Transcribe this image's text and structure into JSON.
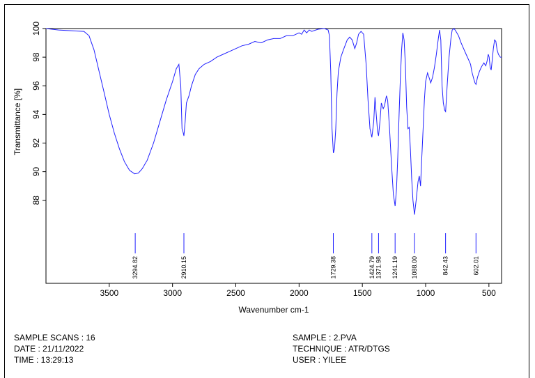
{
  "chart_data": {
    "type": "line",
    "xlabel": "Wavenumber cm-1",
    "ylabel": "Transmittance [%]",
    "xlim": [
      4000,
      400
    ],
    "ylim": [
      82.2,
      100
    ],
    "x_ticks": [
      3500,
      3000,
      2500,
      2000,
      1500,
      1000,
      500
    ],
    "y_ticks": [
      88,
      90,
      92,
      94,
      96,
      98,
      100
    ],
    "line_color": "#2020ff",
    "grid": false,
    "series": [
      {
        "points": [
          [
            4000,
            100.0
          ],
          [
            3900,
            99.9
          ],
          [
            3800,
            99.85
          ],
          [
            3700,
            99.8
          ],
          [
            3660,
            99.5
          ],
          [
            3620,
            98.5
          ],
          [
            3580,
            97.0
          ],
          [
            3540,
            95.5
          ],
          [
            3500,
            94.0
          ],
          [
            3460,
            92.7
          ],
          [
            3420,
            91.6
          ],
          [
            3380,
            90.7
          ],
          [
            3340,
            90.1
          ],
          [
            3300,
            89.85
          ],
          [
            3270,
            89.9
          ],
          [
            3240,
            90.2
          ],
          [
            3200,
            90.8
          ],
          [
            3150,
            92.0
          ],
          [
            3100,
            93.5
          ],
          [
            3050,
            95.0
          ],
          [
            3000,
            96.3
          ],
          [
            2970,
            97.2
          ],
          [
            2950,
            97.5
          ],
          [
            2935,
            96.0
          ],
          [
            2925,
            93.0
          ],
          [
            2918,
            92.8
          ],
          [
            2910,
            92.5
          ],
          [
            2900,
            93.5
          ],
          [
            2890,
            94.8
          ],
          [
            2870,
            95.3
          ],
          [
            2850,
            96.0
          ],
          [
            2820,
            96.8
          ],
          [
            2790,
            97.2
          ],
          [
            2750,
            97.5
          ],
          [
            2700,
            97.7
          ],
          [
            2650,
            98.0
          ],
          [
            2600,
            98.2
          ],
          [
            2550,
            98.4
          ],
          [
            2500,
            98.6
          ],
          [
            2450,
            98.8
          ],
          [
            2400,
            98.9
          ],
          [
            2350,
            99.1
          ],
          [
            2300,
            99.0
          ],
          [
            2250,
            99.2
          ],
          [
            2200,
            99.3
          ],
          [
            2150,
            99.3
          ],
          [
            2100,
            99.5
          ],
          [
            2050,
            99.5
          ],
          [
            2000,
            99.7
          ],
          [
            1980,
            99.6
          ],
          [
            1960,
            99.9
          ],
          [
            1940,
            99.7
          ],
          [
            1920,
            99.9
          ],
          [
            1900,
            99.8
          ],
          [
            1850,
            99.95
          ],
          [
            1800,
            100.0
          ],
          [
            1770,
            99.9
          ],
          [
            1760,
            99.5
          ],
          [
            1750,
            97.0
          ],
          [
            1740,
            93.0
          ],
          [
            1729,
            91.3
          ],
          [
            1720,
            91.6
          ],
          [
            1710,
            93.0
          ],
          [
            1700,
            95.5
          ],
          [
            1690,
            97.0
          ],
          [
            1670,
            98.0
          ],
          [
            1650,
            98.5
          ],
          [
            1620,
            99.2
          ],
          [
            1600,
            99.4
          ],
          [
            1580,
            99.2
          ],
          [
            1560,
            98.6
          ],
          [
            1545,
            99.0
          ],
          [
            1530,
            99.6
          ],
          [
            1510,
            99.8
          ],
          [
            1490,
            99.6
          ],
          [
            1470,
            97.5
          ],
          [
            1455,
            95.0
          ],
          [
            1440,
            93.0
          ],
          [
            1425,
            92.4
          ],
          [
            1410,
            93.5
          ],
          [
            1400,
            95.2
          ],
          [
            1390,
            94.0
          ],
          [
            1380,
            92.8
          ],
          [
            1372,
            92.5
          ],
          [
            1360,
            93.6
          ],
          [
            1350,
            94.8
          ],
          [
            1335,
            94.4
          ],
          [
            1325,
            94.6
          ],
          [
            1310,
            95.3
          ],
          [
            1300,
            95.0
          ],
          [
            1285,
            93.0
          ],
          [
            1270,
            90.5
          ],
          [
            1255,
            88.4
          ],
          [
            1241,
            87.6
          ],
          [
            1230,
            88.8
          ],
          [
            1220,
            91.0
          ],
          [
            1210,
            94.0
          ],
          [
            1200,
            96.5
          ],
          [
            1190,
            98.5
          ],
          [
            1180,
            99.7
          ],
          [
            1170,
            99.2
          ],
          [
            1160,
            97.5
          ],
          [
            1150,
            94.5
          ],
          [
            1140,
            93.0
          ],
          [
            1130,
            93.1
          ],
          [
            1120,
            91.5
          ],
          [
            1110,
            89.5
          ],
          [
            1100,
            88.0
          ],
          [
            1088,
            87.0
          ],
          [
            1075,
            88.0
          ],
          [
            1060,
            89.3
          ],
          [
            1050,
            89.7
          ],
          [
            1040,
            89.0
          ],
          [
            1030,
            91.0
          ],
          [
            1020,
            93.0
          ],
          [
            1010,
            95.0
          ],
          [
            1000,
            96.3
          ],
          [
            985,
            96.9
          ],
          [
            970,
            96.5
          ],
          [
            960,
            96.2
          ],
          [
            945,
            96.6
          ],
          [
            930,
            97.3
          ],
          [
            915,
            98.2
          ],
          [
            900,
            99.3
          ],
          [
            890,
            99.9
          ],
          [
            880,
            99.2
          ],
          [
            870,
            96.0
          ],
          [
            860,
            94.8
          ],
          [
            850,
            94.3
          ],
          [
            842,
            94.2
          ],
          [
            830,
            96.0
          ],
          [
            815,
            98.0
          ],
          [
            800,
            99.3
          ],
          [
            790,
            99.9
          ],
          [
            775,
            100.0
          ],
          [
            760,
            99.8
          ],
          [
            740,
            99.5
          ],
          [
            720,
            99.0
          ],
          [
            700,
            98.6
          ],
          [
            680,
            98.2
          ],
          [
            660,
            97.8
          ],
          [
            645,
            97.5
          ],
          [
            635,
            97.0
          ],
          [
            620,
            96.5
          ],
          [
            610,
            96.2
          ],
          [
            602,
            96.1
          ],
          [
            590,
            96.6
          ],
          [
            575,
            97.0
          ],
          [
            560,
            97.3
          ],
          [
            540,
            97.6
          ],
          [
            525,
            97.4
          ],
          [
            515,
            97.7
          ],
          [
            505,
            98.2
          ],
          [
            498,
            98.0
          ],
          [
            490,
            97.3
          ],
          [
            482,
            97.1
          ],
          [
            475,
            97.7
          ],
          [
            465,
            98.6
          ],
          [
            455,
            99.2
          ],
          [
            445,
            99.1
          ],
          [
            435,
            98.5
          ],
          [
            425,
            98.2
          ],
          [
            410,
            98.0
          ],
          [
            400,
            98.0
          ]
        ]
      }
    ],
    "peaks": [
      {
        "x": 3294.82,
        "label": "3294.82"
      },
      {
        "x": 2910.15,
        "label": "2910.15"
      },
      {
        "x": 1729.38,
        "label": "1729.38"
      },
      {
        "x": 1424.79,
        "label": "1424.79"
      },
      {
        "x": 1371.98,
        "label": "1371.98"
      },
      {
        "x": 1241.19,
        "label": "1241.19"
      },
      {
        "x": 1088.0,
        "label": "1088.00"
      },
      {
        "x": 842.43,
        "label": "842.43"
      },
      {
        "x": 602.01,
        "label": "602.01"
      }
    ]
  },
  "info": {
    "sample_scans": "SAMPLE SCANS : 16",
    "date": "DATE : 21/11/2022",
    "time": "TIME : 13:29:13",
    "sample": "SAMPLE : 2.PVA",
    "technique": "TECHNIQUE : ATR/DTGS",
    "user": "USER : YILEE"
  }
}
